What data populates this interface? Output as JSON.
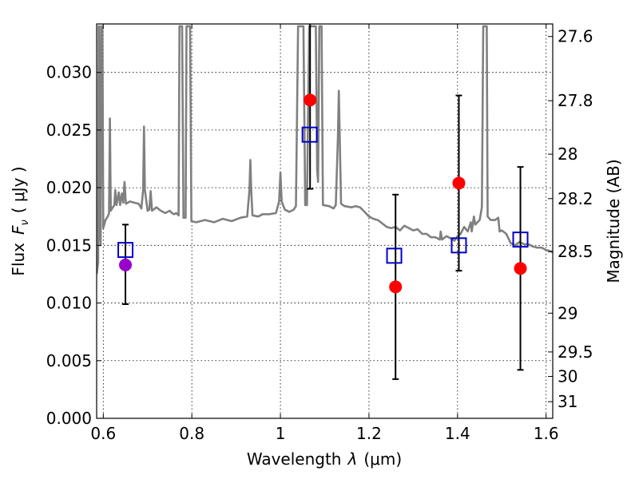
{
  "chart_data": {
    "type": "scatter",
    "title": "",
    "xlabel": "Wavelength",
    "xlabel_symbol": "λ",
    "xlabel_unit": "(μm)",
    "ylabel": "Flux",
    "ylabel_symbol": "F",
    "ylabel_subscript": "ν",
    "ylabel_unit": "( μJy )",
    "y2label": "Magnitude (AB)",
    "xlim": [
      0.585,
      1.615
    ],
    "ylim": [
      0.0,
      0.0342
    ],
    "grid": true,
    "legend": "none",
    "x_ticks": [
      {
        "v": 0.6,
        "label": "0.6"
      },
      {
        "v": 0.8,
        "label": "0.8"
      },
      {
        "v": 1.0,
        "label": "1"
      },
      {
        "v": 1.2,
        "label": "1.2"
      },
      {
        "v": 1.4,
        "label": "1.4"
      },
      {
        "v": 1.6,
        "label": "1.6"
      }
    ],
    "y_ticks": [
      {
        "v": 0.0,
        "label": "0.000"
      },
      {
        "v": 0.005,
        "label": "0.005"
      },
      {
        "v": 0.01,
        "label": "0.010"
      },
      {
        "v": 0.015,
        "label": "0.015"
      },
      {
        "v": 0.02,
        "label": "0.020"
      },
      {
        "v": 0.025,
        "label": "0.025"
      },
      {
        "v": 0.03,
        "label": "0.030"
      }
    ],
    "y2_ticks": [
      {
        "mag": 27.6,
        "label": "27.6"
      },
      {
        "mag": 27.8,
        "label": "27.8"
      },
      {
        "mag": 28.0,
        "label": "28"
      },
      {
        "mag": 28.2,
        "label": "28.2"
      },
      {
        "mag": 28.5,
        "label": "28.5"
      },
      {
        "mag": 29.0,
        "label": "29"
      },
      {
        "mag": 29.5,
        "label": "29.5"
      },
      {
        "mag": 30.0,
        "label": "30"
      },
      {
        "mag": 31.0,
        "label": "31"
      }
    ],
    "template_spectrum": {
      "name": "",
      "color": "#808080",
      "points": [
        [
          0.585,
          0.0125
        ],
        [
          0.5885,
          0.0135
        ],
        [
          0.5895,
          0.034
        ],
        [
          0.591,
          0.034
        ],
        [
          0.5925,
          0.016
        ],
        [
          0.594,
          0.015
        ],
        [
          0.596,
          0.034
        ],
        [
          0.598,
          0.034
        ],
        [
          0.6,
          0.0165
        ],
        [
          0.605,
          0.0172
        ],
        [
          0.61,
          0.0175
        ],
        [
          0.613,
          0.0178
        ],
        [
          0.615,
          0.026
        ],
        [
          0.617,
          0.018
        ],
        [
          0.62,
          0.0182
        ],
        [
          0.625,
          0.0185
        ],
        [
          0.627,
          0.0198
        ],
        [
          0.63,
          0.0185
        ],
        [
          0.635,
          0.0196
        ],
        [
          0.638,
          0.0185
        ],
        [
          0.642,
          0.0195
        ],
        [
          0.645,
          0.0187
        ],
        [
          0.648,
          0.0205
        ],
        [
          0.651,
          0.0186
        ],
        [
          0.66,
          0.0188
        ],
        [
          0.67,
          0.0187
        ],
        [
          0.68,
          0.0186
        ],
        [
          0.686,
          0.0182
        ],
        [
          0.69,
          0.0198
        ],
        [
          0.692,
          0.0253
        ],
        [
          0.694,
          0.0198
        ],
        [
          0.7,
          0.018
        ],
        [
          0.704,
          0.0181
        ],
        [
          0.707,
          0.0197
        ],
        [
          0.71,
          0.018
        ],
        [
          0.72,
          0.0183
        ],
        [
          0.73,
          0.018
        ],
        [
          0.74,
          0.0178
        ],
        [
          0.75,
          0.018
        ],
        [
          0.755,
          0.0178
        ],
        [
          0.76,
          0.0177
        ],
        [
          0.765,
          0.0178
        ],
        [
          0.77,
          0.0176
        ],
        [
          0.772,
          0.034
        ],
        [
          0.778,
          0.034
        ],
        [
          0.781,
          0.0174
        ],
        [
          0.786,
          0.0174
        ],
        [
          0.788,
          0.034
        ],
        [
          0.796,
          0.034
        ],
        [
          0.799,
          0.0171
        ],
        [
          0.81,
          0.017
        ],
        [
          0.83,
          0.0172
        ],
        [
          0.85,
          0.017
        ],
        [
          0.87,
          0.0173
        ],
        [
          0.89,
          0.0171
        ],
        [
          0.91,
          0.0174
        ],
        [
          0.925,
          0.0175
        ],
        [
          0.93,
          0.0198
        ],
        [
          0.932,
          0.0224
        ],
        [
          0.934,
          0.0198
        ],
        [
          0.937,
          0.0176
        ],
        [
          0.95,
          0.0175
        ],
        [
          0.96,
          0.0177
        ],
        [
          0.975,
          0.0177
        ],
        [
          0.99,
          0.0178
        ],
        [
          0.997,
          0.0188
        ],
        [
          1.0,
          0.0213
        ],
        [
          1.003,
          0.0188
        ],
        [
          1.01,
          0.0181
        ],
        [
          1.02,
          0.0179
        ],
        [
          1.03,
          0.0181
        ],
        [
          1.035,
          0.0184
        ],
        [
          1.04,
          0.034
        ],
        [
          1.052,
          0.034
        ],
        [
          1.056,
          0.0185
        ],
        [
          1.06,
          0.0185
        ],
        [
          1.065,
          0.034
        ],
        [
          1.08,
          0.034
        ],
        [
          1.083,
          0.0215
        ],
        [
          1.085,
          0.0205
        ],
        [
          1.088,
          0.034
        ],
        [
          1.093,
          0.034
        ],
        [
          1.096,
          0.0185
        ],
        [
          1.11,
          0.0184
        ],
        [
          1.12,
          0.0182
        ],
        [
          1.125,
          0.0185
        ],
        [
          1.13,
          0.0245
        ],
        [
          1.132,
          0.0284
        ],
        [
          1.134,
          0.0245
        ],
        [
          1.137,
          0.0186
        ],
        [
          1.145,
          0.0184
        ],
        [
          1.16,
          0.0183
        ],
        [
          1.17,
          0.0184
        ],
        [
          1.18,
          0.0183
        ],
        [
          1.19,
          0.0179
        ],
        [
          1.2,
          0.0175
        ],
        [
          1.21,
          0.0173
        ],
        [
          1.22,
          0.0172
        ],
        [
          1.23,
          0.0169
        ],
        [
          1.24,
          0.0166
        ],
        [
          1.25,
          0.0165
        ],
        [
          1.26,
          0.0166
        ],
        [
          1.27,
          0.0163
        ],
        [
          1.28,
          0.0167
        ],
        [
          1.29,
          0.0165
        ],
        [
          1.3,
          0.0163
        ],
        [
          1.31,
          0.0164
        ],
        [
          1.32,
          0.016
        ],
        [
          1.33,
          0.016
        ],
        [
          1.34,
          0.0157
        ],
        [
          1.35,
          0.0157
        ],
        [
          1.36,
          0.0155
        ],
        [
          1.362,
          0.0162
        ],
        [
          1.365,
          0.0155
        ],
        [
          1.375,
          0.0158
        ],
        [
          1.385,
          0.0156
        ],
        [
          1.393,
          0.0154
        ],
        [
          1.4,
          0.0158
        ],
        [
          1.407,
          0.016
        ],
        [
          1.415,
          0.0166
        ],
        [
          1.423,
          0.0162
        ],
        [
          1.43,
          0.017
        ],
        [
          1.432,
          0.0162
        ],
        [
          1.437,
          0.0175
        ],
        [
          1.44,
          0.0168
        ],
        [
          1.45,
          0.0172
        ],
        [
          1.455,
          0.0183
        ],
        [
          1.458,
          0.034
        ],
        [
          1.466,
          0.034
        ],
        [
          1.468,
          0.0175
        ],
        [
          1.475,
          0.0172
        ],
        [
          1.485,
          0.0172
        ],
        [
          1.492,
          0.0174
        ],
        [
          1.495,
          0.0162
        ],
        [
          1.5,
          0.0163
        ],
        [
          1.51,
          0.016
        ],
        [
          1.52,
          0.0152
        ],
        [
          1.53,
          0.015
        ],
        [
          1.54,
          0.0153
        ],
        [
          1.55,
          0.0151
        ],
        [
          1.56,
          0.0151
        ],
        [
          1.57,
          0.0149
        ],
        [
          1.58,
          0.0148
        ],
        [
          1.59,
          0.0148
        ],
        [
          1.6,
          0.0146
        ],
        [
          1.61,
          0.0145
        ],
        [
          1.615,
          0.0144
        ]
      ]
    },
    "model_fluxes": {
      "name": "",
      "marker": "open-square",
      "color": "#0000cc",
      "points": [
        {
          "x": 0.65,
          "y": 0.0146
        },
        {
          "x": 1.066,
          "y": 0.0246
        },
        {
          "x": 1.257,
          "y": 0.0141
        },
        {
          "x": 1.403,
          "y": 0.015
        },
        {
          "x": 1.542,
          "y": 0.0155
        }
      ]
    },
    "observed_fluxes": {
      "name": "",
      "marker": "filled-circle",
      "points": [
        {
          "x": 0.65,
          "y": 0.0133,
          "err_lo": 0.0099,
          "err_hi": 0.0168,
          "color": "#9900cc"
        },
        {
          "x": 1.067,
          "y": 0.0276,
          "err_lo": 0.0199,
          "err_hi": 0.0342,
          "color": "#ff0000"
        },
        {
          "x": 1.26,
          "y": 0.0114,
          "err_lo": 0.0034,
          "err_hi": 0.0194,
          "color": "#ff0000"
        },
        {
          "x": 1.403,
          "y": 0.0204,
          "err_lo": 0.0128,
          "err_hi": 0.028,
          "color": "#ff0000"
        },
        {
          "x": 1.542,
          "y": 0.013,
          "err_lo": 0.0042,
          "err_hi": 0.0218,
          "color": "#ff0000"
        }
      ]
    },
    "colors": {
      "spectrum": "#808080",
      "model": "#0000cc",
      "observed": "#ff0000",
      "observed_first": "#9900cc",
      "errorbar": "#000000"
    }
  }
}
